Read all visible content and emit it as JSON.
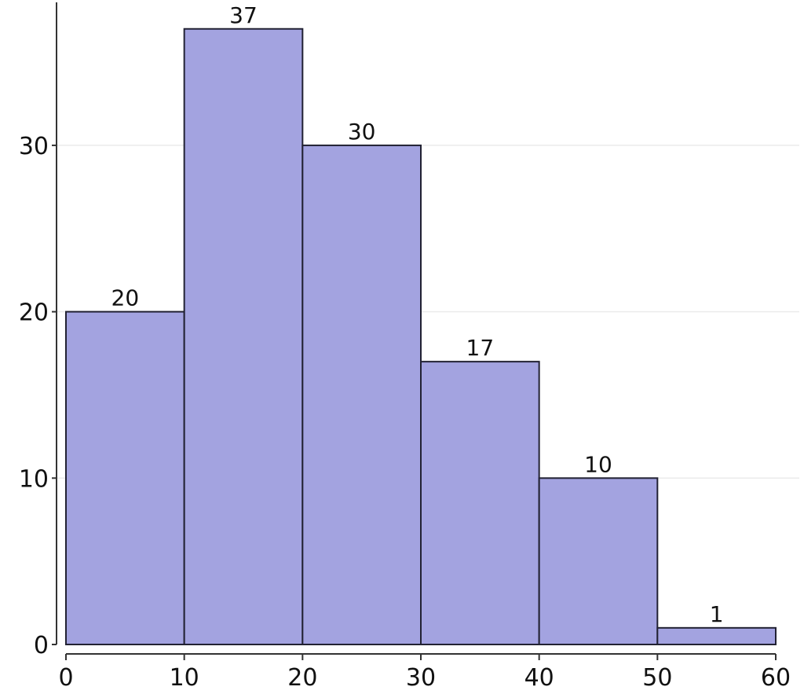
{
  "chart_data": {
    "type": "bar",
    "subtype": "histogram",
    "bins": [
      {
        "start": 0,
        "end": 10,
        "value": 20,
        "label": "20"
      },
      {
        "start": 10,
        "end": 20,
        "value": 37,
        "label": "37"
      },
      {
        "start": 20,
        "end": 30,
        "value": 30,
        "label": "30"
      },
      {
        "start": 30,
        "end": 40,
        "value": 17,
        "label": "17"
      },
      {
        "start": 40,
        "end": 50,
        "value": 10,
        "label": "10"
      },
      {
        "start": 50,
        "end": 60,
        "value": 1,
        "label": "1"
      }
    ],
    "x_ticks": [
      {
        "value": 0,
        "label": "0"
      },
      {
        "value": 10,
        "label": "10"
      },
      {
        "value": 20,
        "label": "20"
      },
      {
        "value": 30,
        "label": "30"
      },
      {
        "value": 40,
        "label": "40"
      },
      {
        "value": 50,
        "label": "50"
      },
      {
        "value": 60,
        "label": "60"
      }
    ],
    "y_ticks": [
      {
        "value": 0,
        "label": "0"
      },
      {
        "value": 10,
        "label": "10"
      },
      {
        "value": 20,
        "label": "20"
      },
      {
        "value": 30,
        "label": "30"
      }
    ],
    "xlim": [
      0,
      60
    ],
    "ylim": [
      0,
      38.5
    ],
    "grid": "horizontal",
    "colors": {
      "bar_fill": "#a3a3e0",
      "bar_stroke": "#222233",
      "axis": "#333333",
      "grid": "#ebebeb"
    }
  }
}
